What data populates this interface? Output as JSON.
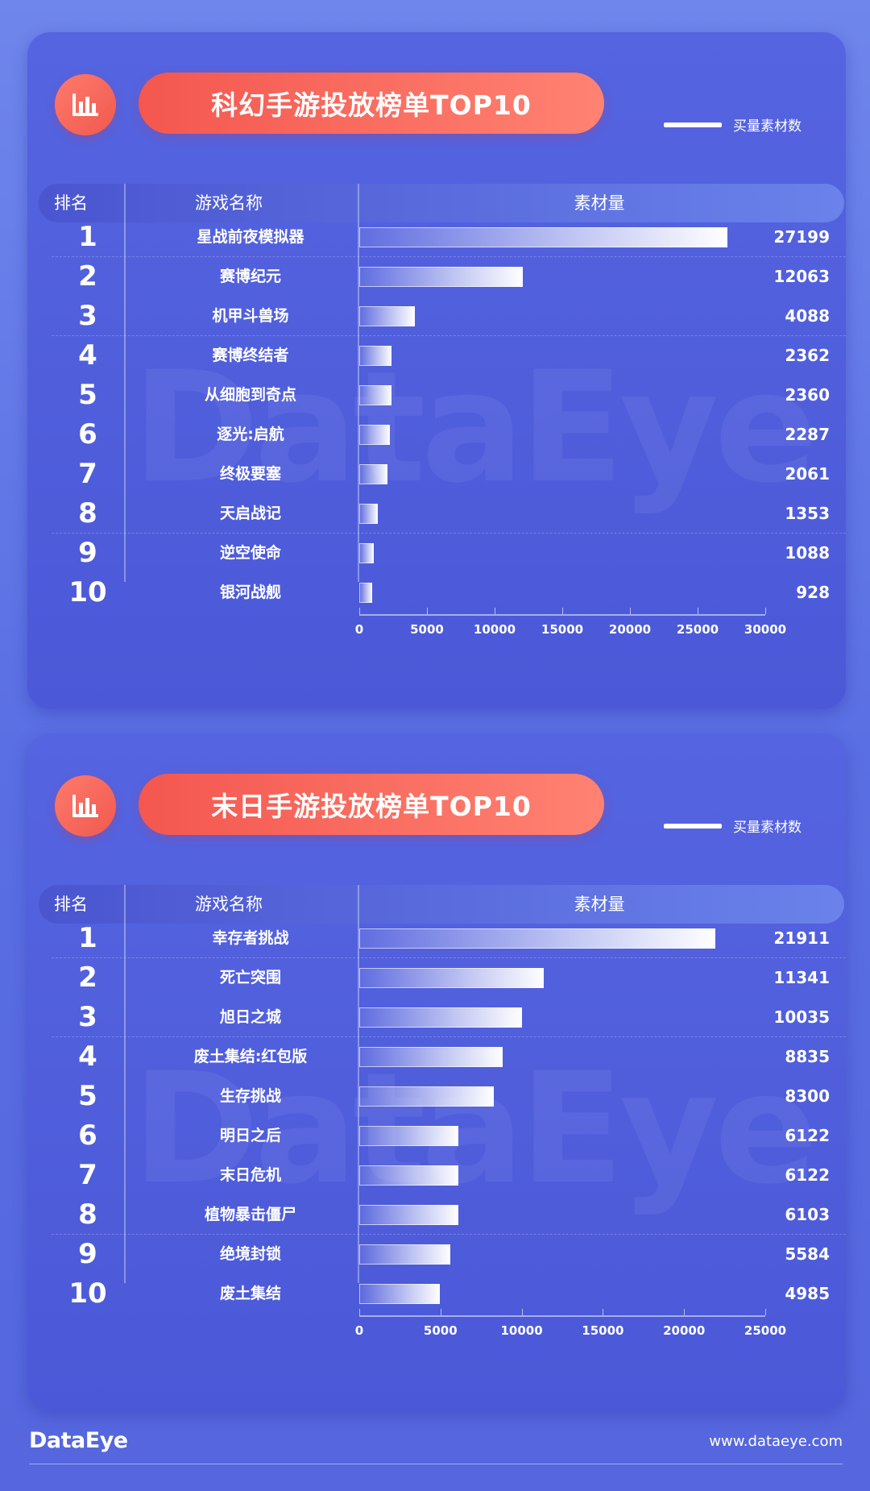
{
  "chart_data": [
    {
      "type": "bar",
      "title": "科幻手游投放榜单TOP10",
      "legend": "买量素材数",
      "columns": {
        "rank": "排名",
        "name": "游戏名称",
        "value": "素材量"
      },
      "ranks": [
        "1",
        "2",
        "3",
        "4",
        "5",
        "6",
        "7",
        "8",
        "9",
        "10"
      ],
      "categories": [
        "星战前夜模拟器",
        "赛博纪元",
        "机甲斗兽场",
        "赛博终结者",
        "从细胞到奇点",
        "逐光:启航",
        "终极要塞",
        "天启战记",
        "逆空使命",
        "银河战舰"
      ],
      "values": [
        27199,
        12063,
        4088,
        2362,
        2360,
        2287,
        2061,
        1353,
        1088,
        928
      ],
      "xlim": [
        0,
        30000
      ],
      "xticks": [
        0,
        5000,
        10000,
        15000,
        20000,
        25000,
        30000
      ]
    },
    {
      "type": "bar",
      "title": "末日手游投放榜单TOP10",
      "legend": "买量素材数",
      "columns": {
        "rank": "排名",
        "name": "游戏名称",
        "value": "素材量"
      },
      "ranks": [
        "1",
        "2",
        "3",
        "4",
        "5",
        "6",
        "7",
        "8",
        "9",
        "10"
      ],
      "categories": [
        "幸存者挑战",
        "死亡突围",
        "旭日之城",
        "废土集结:红包版",
        "生存挑战",
        "明日之后",
        "末日危机",
        "植物暴击僵尸",
        "绝境封锁",
        "废土集结"
      ],
      "values": [
        21911,
        11341,
        10035,
        8835,
        8300,
        6122,
        6122,
        6103,
        5584,
        4985
      ],
      "xlim": [
        0,
        25000
      ],
      "xticks": [
        0,
        5000,
        10000,
        15000,
        20000,
        25000
      ]
    }
  ],
  "watermark": "DataEye",
  "footer": {
    "logo": "DataEye",
    "url": "www.dataeye.com"
  },
  "colors": {
    "background": "#5a6fe3",
    "card": "#4f5ddc",
    "accent": "#f4574f",
    "bar_end": "#ffffff"
  },
  "icons": {
    "title_icon": "bar-chart-icon"
  }
}
